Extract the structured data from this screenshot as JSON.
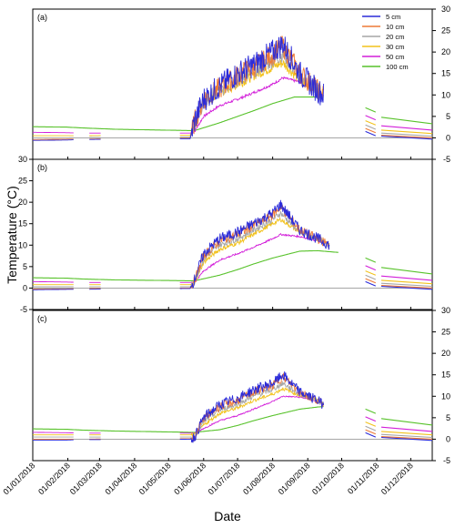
{
  "figure": {
    "ylabel": "Temperature (°C)",
    "xlabel": "Date"
  },
  "chart_data": {
    "type": "line",
    "xlabel": "Date",
    "ylabel": "Temperature (°C)",
    "xlim": [
      "2018-01-01",
      "2018-12-20"
    ],
    "x_ticks": [
      "01/01/2018",
      "01/02/2018",
      "01/03/2018",
      "01/04/2018",
      "01/05/2018",
      "01/06/2018",
      "01/07/2018",
      "01/08/2018",
      "01/09/2018",
      "01/10/2018",
      "01/11/2018",
      "01/12/2018"
    ],
    "x_tick_dates": [
      "2018-01-01",
      "2018-02-01",
      "2018-03-01",
      "2018-04-01",
      "2018-05-01",
      "2018-06-01",
      "2018-07-01",
      "2018-08-01",
      "2018-09-01",
      "2018-10-01",
      "2018-11-01",
      "2018-12-01"
    ],
    "legend": {
      "position": "top-right",
      "entries": [
        "5 cm",
        "10 cm",
        "20 cm",
        "30 cm",
        "50 cm",
        "100 cm"
      ]
    },
    "colors": {
      "5 cm": "#2b2bd9",
      "10 cm": "#ee7a36",
      "20 cm": "#a6a6a6",
      "30 cm": "#f2c21c",
      "50 cm": "#d21ed9",
      "100 cm": "#57c22a"
    },
    "panels": [
      {
        "label": "(a)",
        "ylim": [
          -5,
          30
        ],
        "yticks": [
          -5,
          0,
          5,
          10,
          15,
          20,
          25,
          30
        ],
        "y_axis_side": "right",
        "zero_line": true,
        "series": [
          {
            "name": "5 cm",
            "noise": 3.0,
            "x": [
              "2018-01-01",
              "2018-01-31",
              "2018-02-15",
              "2018-03-15",
              "2018-05-20",
              "2018-05-24",
              "2018-06-01",
              "2018-06-15",
              "2018-07-01",
              "2018-07-15",
              "2018-08-01",
              "2018-08-10",
              "2018-08-25",
              "2018-09-10",
              "2018-09-15"
            ],
            "y": [
              -0.6,
              -0.5,
              -0.4,
              -0.3,
              -0.2,
              4,
              9,
              12,
              15,
              17,
              20,
              22,
              15,
              11,
              10
            ]
          },
          {
            "name": "10 cm",
            "noise": 2.6,
            "x": [
              "2018-01-01",
              "2018-01-31",
              "2018-02-15",
              "2018-03-15",
              "2018-05-20",
              "2018-05-24",
              "2018-06-01",
              "2018-06-15",
              "2018-07-01",
              "2018-07-15",
              "2018-08-01",
              "2018-08-10",
              "2018-08-25",
              "2018-09-10",
              "2018-09-15"
            ],
            "y": [
              -0.4,
              -0.3,
              -0.3,
              -0.2,
              -0.1,
              3.8,
              9,
              11.5,
              14.5,
              16.5,
              19.5,
              21.5,
              15,
              11,
              10
            ]
          },
          {
            "name": "20 cm",
            "noise": 1.8,
            "x": [
              "2018-01-01",
              "2018-01-31",
              "2018-02-15",
              "2018-03-15",
              "2018-05-20",
              "2018-05-24",
              "2018-06-01",
              "2018-06-15",
              "2018-07-01",
              "2018-07-15",
              "2018-08-01",
              "2018-08-10",
              "2018-08-25",
              "2018-09-10",
              "2018-09-15"
            ],
            "y": [
              0,
              0,
              0.1,
              0.1,
              0.2,
              3.5,
              8.5,
              11,
              13.5,
              15.5,
              18,
              19.5,
              14.5,
              11,
              10
            ]
          },
          {
            "name": "30 cm",
            "noise": 1.2,
            "x": [
              "2018-01-01",
              "2018-01-31",
              "2018-02-15",
              "2018-03-15",
              "2018-05-20",
              "2018-05-24",
              "2018-06-01",
              "2018-06-15",
              "2018-07-01",
              "2018-07-15",
              "2018-08-01",
              "2018-08-10",
              "2018-08-25",
              "2018-09-10",
              "2018-09-15"
            ],
            "y": [
              0.5,
              0.5,
              0.5,
              0.6,
              0.6,
              3,
              8,
              10.5,
              12.5,
              14.5,
              16.5,
              17.5,
              13.5,
              11,
              10
            ]
          },
          {
            "name": "50 cm",
            "noise": 0.3,
            "x": [
              "2018-01-01",
              "2018-01-31",
              "2018-02-15",
              "2018-03-15",
              "2018-05-20",
              "2018-05-24",
              "2018-06-01",
              "2018-06-15",
              "2018-07-01",
              "2018-07-15",
              "2018-08-01",
              "2018-08-10",
              "2018-08-25",
              "2018-09-10",
              "2018-09-15"
            ],
            "y": [
              1.3,
              1.2,
              1.1,
              1.1,
              1.1,
              1.5,
              5,
              7.5,
              9,
              10.5,
              12.5,
              14,
              13,
              11,
              10.5
            ]
          },
          {
            "name": "100 cm",
            "noise": 0,
            "x": [
              "2018-01-01",
              "2018-01-31",
              "2018-02-15",
              "2018-03-15",
              "2018-05-20",
              "2018-05-24",
              "2018-06-15",
              "2018-07-01",
              "2018-07-15",
              "2018-08-01",
              "2018-08-20",
              "2018-09-10",
              "2018-09-15"
            ],
            "y": [
              2.6,
              2.5,
              2.3,
              2.0,
              1.7,
              1.7,
              3.5,
              5,
              6.3,
              8,
              9.5,
              9.5,
              9.3
            ]
          }
        ]
      },
      {
        "label": "(b)",
        "ylim": [
          -5,
          30
        ],
        "yticks": [
          -5,
          0,
          5,
          10,
          15,
          20,
          25,
          30
        ],
        "y_axis_side": "left",
        "zero_line": true,
        "series": [
          {
            "name": "5 cm",
            "noise": 1.3,
            "x": [
              "2018-01-01",
              "2018-01-31",
              "2018-02-15",
              "2018-03-15",
              "2018-05-20",
              "2018-05-24",
              "2018-06-01",
              "2018-06-15",
              "2018-07-01",
              "2018-07-15",
              "2018-08-01",
              "2018-08-08",
              "2018-08-25",
              "2018-09-10",
              "2018-09-20"
            ],
            "y": [
              -0.4,
              -0.3,
              -0.3,
              -0.2,
              -0.1,
              2,
              8,
              11.5,
              13,
              15,
              17.5,
              19.5,
              13.5,
              11.5,
              10
            ]
          },
          {
            "name": "10 cm",
            "noise": 1.1,
            "x": [
              "2018-01-01",
              "2018-01-31",
              "2018-02-15",
              "2018-03-15",
              "2018-05-20",
              "2018-05-24",
              "2018-06-01",
              "2018-06-15",
              "2018-07-01",
              "2018-07-15",
              "2018-08-01",
              "2018-08-08",
              "2018-08-25",
              "2018-09-10",
              "2018-09-20"
            ],
            "y": [
              -0.2,
              -0.2,
              -0.1,
              -0.1,
              0,
              1.8,
              7.5,
              11,
              12.5,
              14.5,
              17,
              19,
              13.5,
              11.5,
              10
            ]
          },
          {
            "name": "20 cm",
            "noise": 0.7,
            "x": [
              "2018-01-01",
              "2018-01-31",
              "2018-02-15",
              "2018-03-15",
              "2018-05-20",
              "2018-05-24",
              "2018-06-01",
              "2018-06-15",
              "2018-07-01",
              "2018-07-15",
              "2018-08-01",
              "2018-08-08",
              "2018-08-25",
              "2018-09-10",
              "2018-09-20"
            ],
            "y": [
              0.3,
              0.3,
              0.3,
              0.3,
              0.3,
              1.5,
              6.8,
              10,
              11.5,
              13.5,
              16,
              17.5,
              13,
              11.5,
              10
            ]
          },
          {
            "name": "30 cm",
            "noise": 0.5,
            "x": [
              "2018-01-01",
              "2018-01-31",
              "2018-02-15",
              "2018-03-15",
              "2018-05-20",
              "2018-05-24",
              "2018-06-01",
              "2018-06-15",
              "2018-07-01",
              "2018-07-15",
              "2018-08-01",
              "2018-08-08",
              "2018-08-25",
              "2018-09-10",
              "2018-09-20"
            ],
            "y": [
              0.8,
              0.8,
              0.8,
              0.8,
              0.8,
              1.3,
              6,
              9,
              10.5,
              12.5,
              15,
              16,
              13,
              11.5,
              10
            ]
          },
          {
            "name": "50 cm",
            "noise": 0.2,
            "x": [
              "2018-01-01",
              "2018-01-31",
              "2018-02-15",
              "2018-03-15",
              "2018-05-20",
              "2018-05-24",
              "2018-06-01",
              "2018-06-15",
              "2018-07-01",
              "2018-07-15",
              "2018-08-01",
              "2018-08-08",
              "2018-08-25",
              "2018-09-10",
              "2018-09-20"
            ],
            "y": [
              1.5,
              1.4,
              1.3,
              1.3,
              1.3,
              1.3,
              4,
              6.5,
              8,
              9.5,
              11.5,
              12.5,
              12,
              11,
              10
            ]
          },
          {
            "name": "100 cm",
            "noise": 0,
            "x": [
              "2018-01-01",
              "2018-01-31",
              "2018-02-15",
              "2018-03-15",
              "2018-05-20",
              "2018-05-24",
              "2018-06-15",
              "2018-07-01",
              "2018-07-15",
              "2018-08-01",
              "2018-08-25",
              "2018-09-10",
              "2018-09-28"
            ],
            "y": [
              2.4,
              2.3,
              2.1,
              1.9,
              1.7,
              1.7,
              3,
              4.3,
              5.6,
              7,
              8.6,
              8.7,
              8.3
            ]
          }
        ]
      },
      {
        "label": "(c)",
        "ylim": [
          -5,
          30
        ],
        "yticks": [
          -5,
          0,
          5,
          10,
          15,
          20,
          25,
          30
        ],
        "y_axis_side": "right",
        "zero_line": true,
        "series": [
          {
            "name": "5 cm",
            "noise": 1.2,
            "x": [
              "2018-01-01",
              "2018-01-31",
              "2018-02-15",
              "2018-03-15",
              "2018-05-20",
              "2018-05-24",
              "2018-06-01",
              "2018-06-15",
              "2018-07-01",
              "2018-07-15",
              "2018-08-01",
              "2018-08-10",
              "2018-08-25",
              "2018-09-10",
              "2018-09-15"
            ],
            "y": [
              -0.2,
              -0.2,
              -0.1,
              -0.1,
              0,
              0.5,
              5,
              8,
              9.5,
              11.5,
              13,
              15,
              11,
              9,
              8
            ]
          },
          {
            "name": "10 cm",
            "noise": 1.0,
            "x": [
              "2018-01-01",
              "2018-01-31",
              "2018-02-15",
              "2018-03-15",
              "2018-05-20",
              "2018-05-24",
              "2018-06-01",
              "2018-06-15",
              "2018-07-01",
              "2018-07-15",
              "2018-08-01",
              "2018-08-10",
              "2018-08-25",
              "2018-09-10",
              "2018-09-15"
            ],
            "y": [
              0,
              0,
              0,
              0.1,
              0.1,
              0.5,
              4.8,
              7.6,
              9,
              11,
              12.5,
              14.5,
              11,
              9,
              8
            ]
          },
          {
            "name": "20 cm",
            "noise": 0.6,
            "x": [
              "2018-01-01",
              "2018-01-31",
              "2018-02-15",
              "2018-03-15",
              "2018-05-20",
              "2018-05-24",
              "2018-06-01",
              "2018-06-15",
              "2018-07-01",
              "2018-07-15",
              "2018-08-01",
              "2018-08-10",
              "2018-08-25",
              "2018-09-10",
              "2018-09-15"
            ],
            "y": [
              0.5,
              0.5,
              0.5,
              0.5,
              0.5,
              0.6,
              4,
              6.8,
              8.2,
              10,
              11.6,
              13,
              10.5,
              9,
              8
            ]
          },
          {
            "name": "30 cm",
            "noise": 0.4,
            "x": [
              "2018-01-01",
              "2018-01-31",
              "2018-02-15",
              "2018-03-15",
              "2018-05-20",
              "2018-05-24",
              "2018-06-01",
              "2018-06-15",
              "2018-07-01",
              "2018-07-15",
              "2018-08-01",
              "2018-08-10",
              "2018-08-25",
              "2018-09-10",
              "2018-09-15"
            ],
            "y": [
              1,
              1,
              1,
              1,
              1,
              1,
              3.3,
              6,
              7.3,
              9,
              10.5,
              11.8,
              10.2,
              9,
              8
            ]
          },
          {
            "name": "50 cm",
            "noise": 0.15,
            "x": [
              "2018-01-01",
              "2018-01-31",
              "2018-02-15",
              "2018-03-15",
              "2018-05-20",
              "2018-05-24",
              "2018-06-01",
              "2018-06-15",
              "2018-07-01",
              "2018-07-15",
              "2018-08-01",
              "2018-08-10",
              "2018-08-25",
              "2018-09-10",
              "2018-09-15"
            ],
            "y": [
              1.6,
              1.5,
              1.4,
              1.4,
              1.4,
              1.4,
              2.5,
              4.3,
              5.5,
              7,
              8.8,
              10,
              9.8,
              8.8,
              8
            ]
          },
          {
            "name": "100 cm",
            "noise": 0,
            "x": [
              "2018-01-01",
              "2018-01-31",
              "2018-02-15",
              "2018-03-15",
              "2018-05-20",
              "2018-05-24",
              "2018-06-15",
              "2018-07-01",
              "2018-07-15",
              "2018-08-01",
              "2018-08-25",
              "2018-09-10",
              "2018-09-15"
            ],
            "y": [
              2.4,
              2.3,
              2.1,
              1.9,
              1.6,
              1.6,
              2.2,
              3.2,
              4.3,
              5.5,
              7,
              7.5,
              7.6
            ]
          }
        ]
      }
    ]
  }
}
